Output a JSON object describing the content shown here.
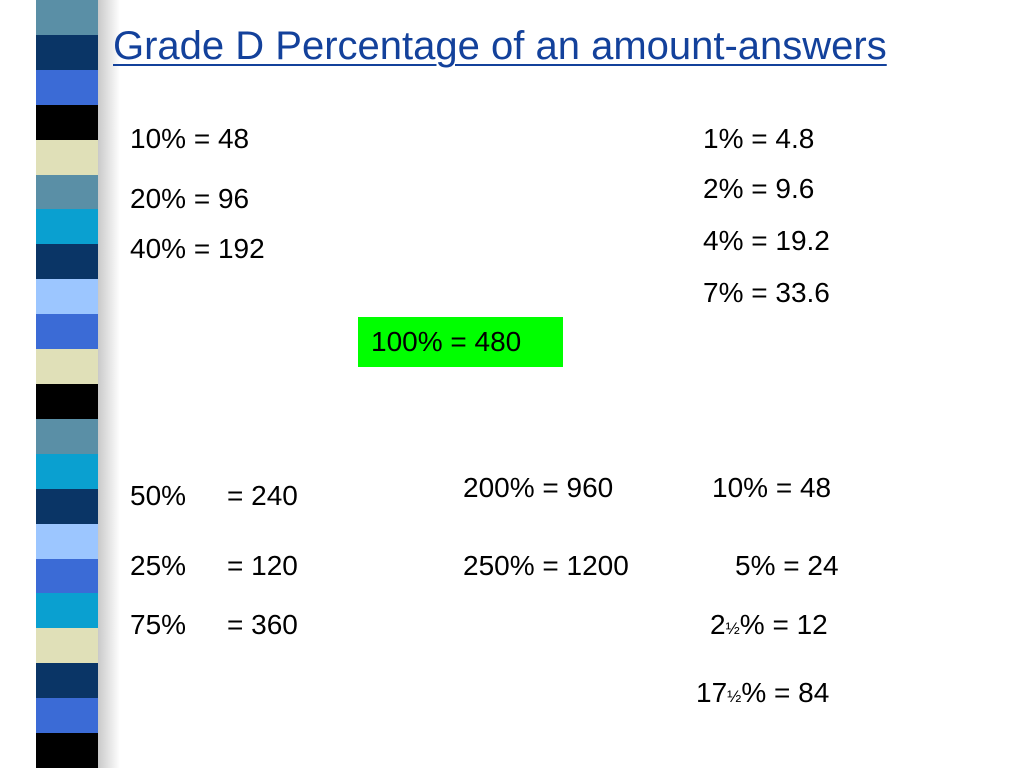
{
  "title": "Grade D Percentage of an amount-answers",
  "colors": {
    "title": "#13419b",
    "highlight": "#00ff00",
    "stripe": [
      "#5a8fa6",
      "#0a3566",
      "#3b6bd6",
      "#000000",
      "#e0e0b8",
      "#5a8fa6",
      "#0aa0d0",
      "#0a3566",
      "#9cc6ff",
      "#3b6bd6",
      "#e0e0b8",
      "#000000",
      "#5a8fa6",
      "#0aa0d0",
      "#0a3566",
      "#9cc6ff",
      "#3b6bd6",
      "#0aa0d0",
      "#e0e0b8",
      "#0a3566",
      "#3b6bd6",
      "#000000"
    ]
  },
  "left_top": [
    "10% = 48",
    "20% = 96",
    "40% = 192"
  ],
  "right_top": [
    "1% = 4.8",
    "2% = 9.6",
    "4% = 19.2",
    "7% = 33.6"
  ],
  "highlight": "100% = 480",
  "left_bottom": [
    {
      "pct": "50%",
      "value": "= 240"
    },
    {
      "pct": "25%",
      "value": "= 120"
    },
    {
      "pct": "75%",
      "value": "= 360"
    }
  ],
  "middle_bottom": [
    "200% = 960",
    "250% = 1200"
  ],
  "right_bottom": {
    "line1": "10% = 48",
    "line2": "5% = 24",
    "line3": {
      "whole": "2",
      "fraction": "½",
      "rest": "% = 12"
    },
    "line4": {
      "whole": "17",
      "fraction": "½",
      "rest": "% = 84"
    }
  }
}
